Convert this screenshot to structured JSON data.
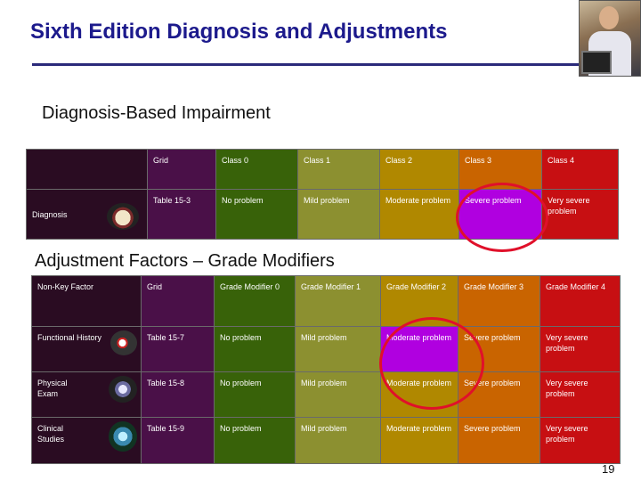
{
  "slide": {
    "title": "Sixth Edition Diagnosis and Adjustments",
    "page_number": "19"
  },
  "section1": {
    "heading": "Diagnosis-Based Impairment",
    "header_row": [
      "",
      "Grid",
      "Class 0",
      "Class 1",
      "Class 2",
      "Class 3",
      "Class 4"
    ],
    "rows": [
      {
        "label": "Diagnosis",
        "icon": "spine-diagram-icon",
        "cells": [
          "Table 15-3",
          "No problem",
          "Mild problem",
          "Moderate problem",
          "Severe problem",
          "Very severe problem"
        ]
      }
    ]
  },
  "section2": {
    "heading": "Adjustment Factors – Grade Modifiers",
    "header_row": [
      "Non-Key Factor",
      "Grid",
      "Grade Modifier 0",
      "Grade Modifier 1",
      "Grade Modifier 2",
      "Grade Modifier 3",
      "Grade Modifier 4"
    ],
    "rows": [
      {
        "label": "Functional History",
        "icon": "history-icon",
        "cells": [
          "Table 15-7",
          "No problem",
          "Mild problem",
          "Moderate problem",
          "Severe problem",
          "Very severe problem"
        ]
      },
      {
        "label": "Physical Exam",
        "icon": "exam-icon",
        "cells": [
          "Table 15-8",
          "No problem",
          "Mild problem",
          "Moderate problem",
          "Severe problem",
          "Very severe problem"
        ]
      },
      {
        "label": "Clinical Studies",
        "icon": "imaging-icon",
        "cells": [
          "Table 15-9",
          "No problem",
          "Mild problem",
          "Moderate problem",
          "Severe problem",
          "Very severe problem"
        ]
      }
    ]
  },
  "colors": {
    "title": "#1c1a8c",
    "class0": "#386209",
    "class1": "#8c9030",
    "class2": "#b08800",
    "class3": "#c96400",
    "class4": "#c70f12",
    "highlight": "#b000e0",
    "circle": "#e0102a"
  }
}
